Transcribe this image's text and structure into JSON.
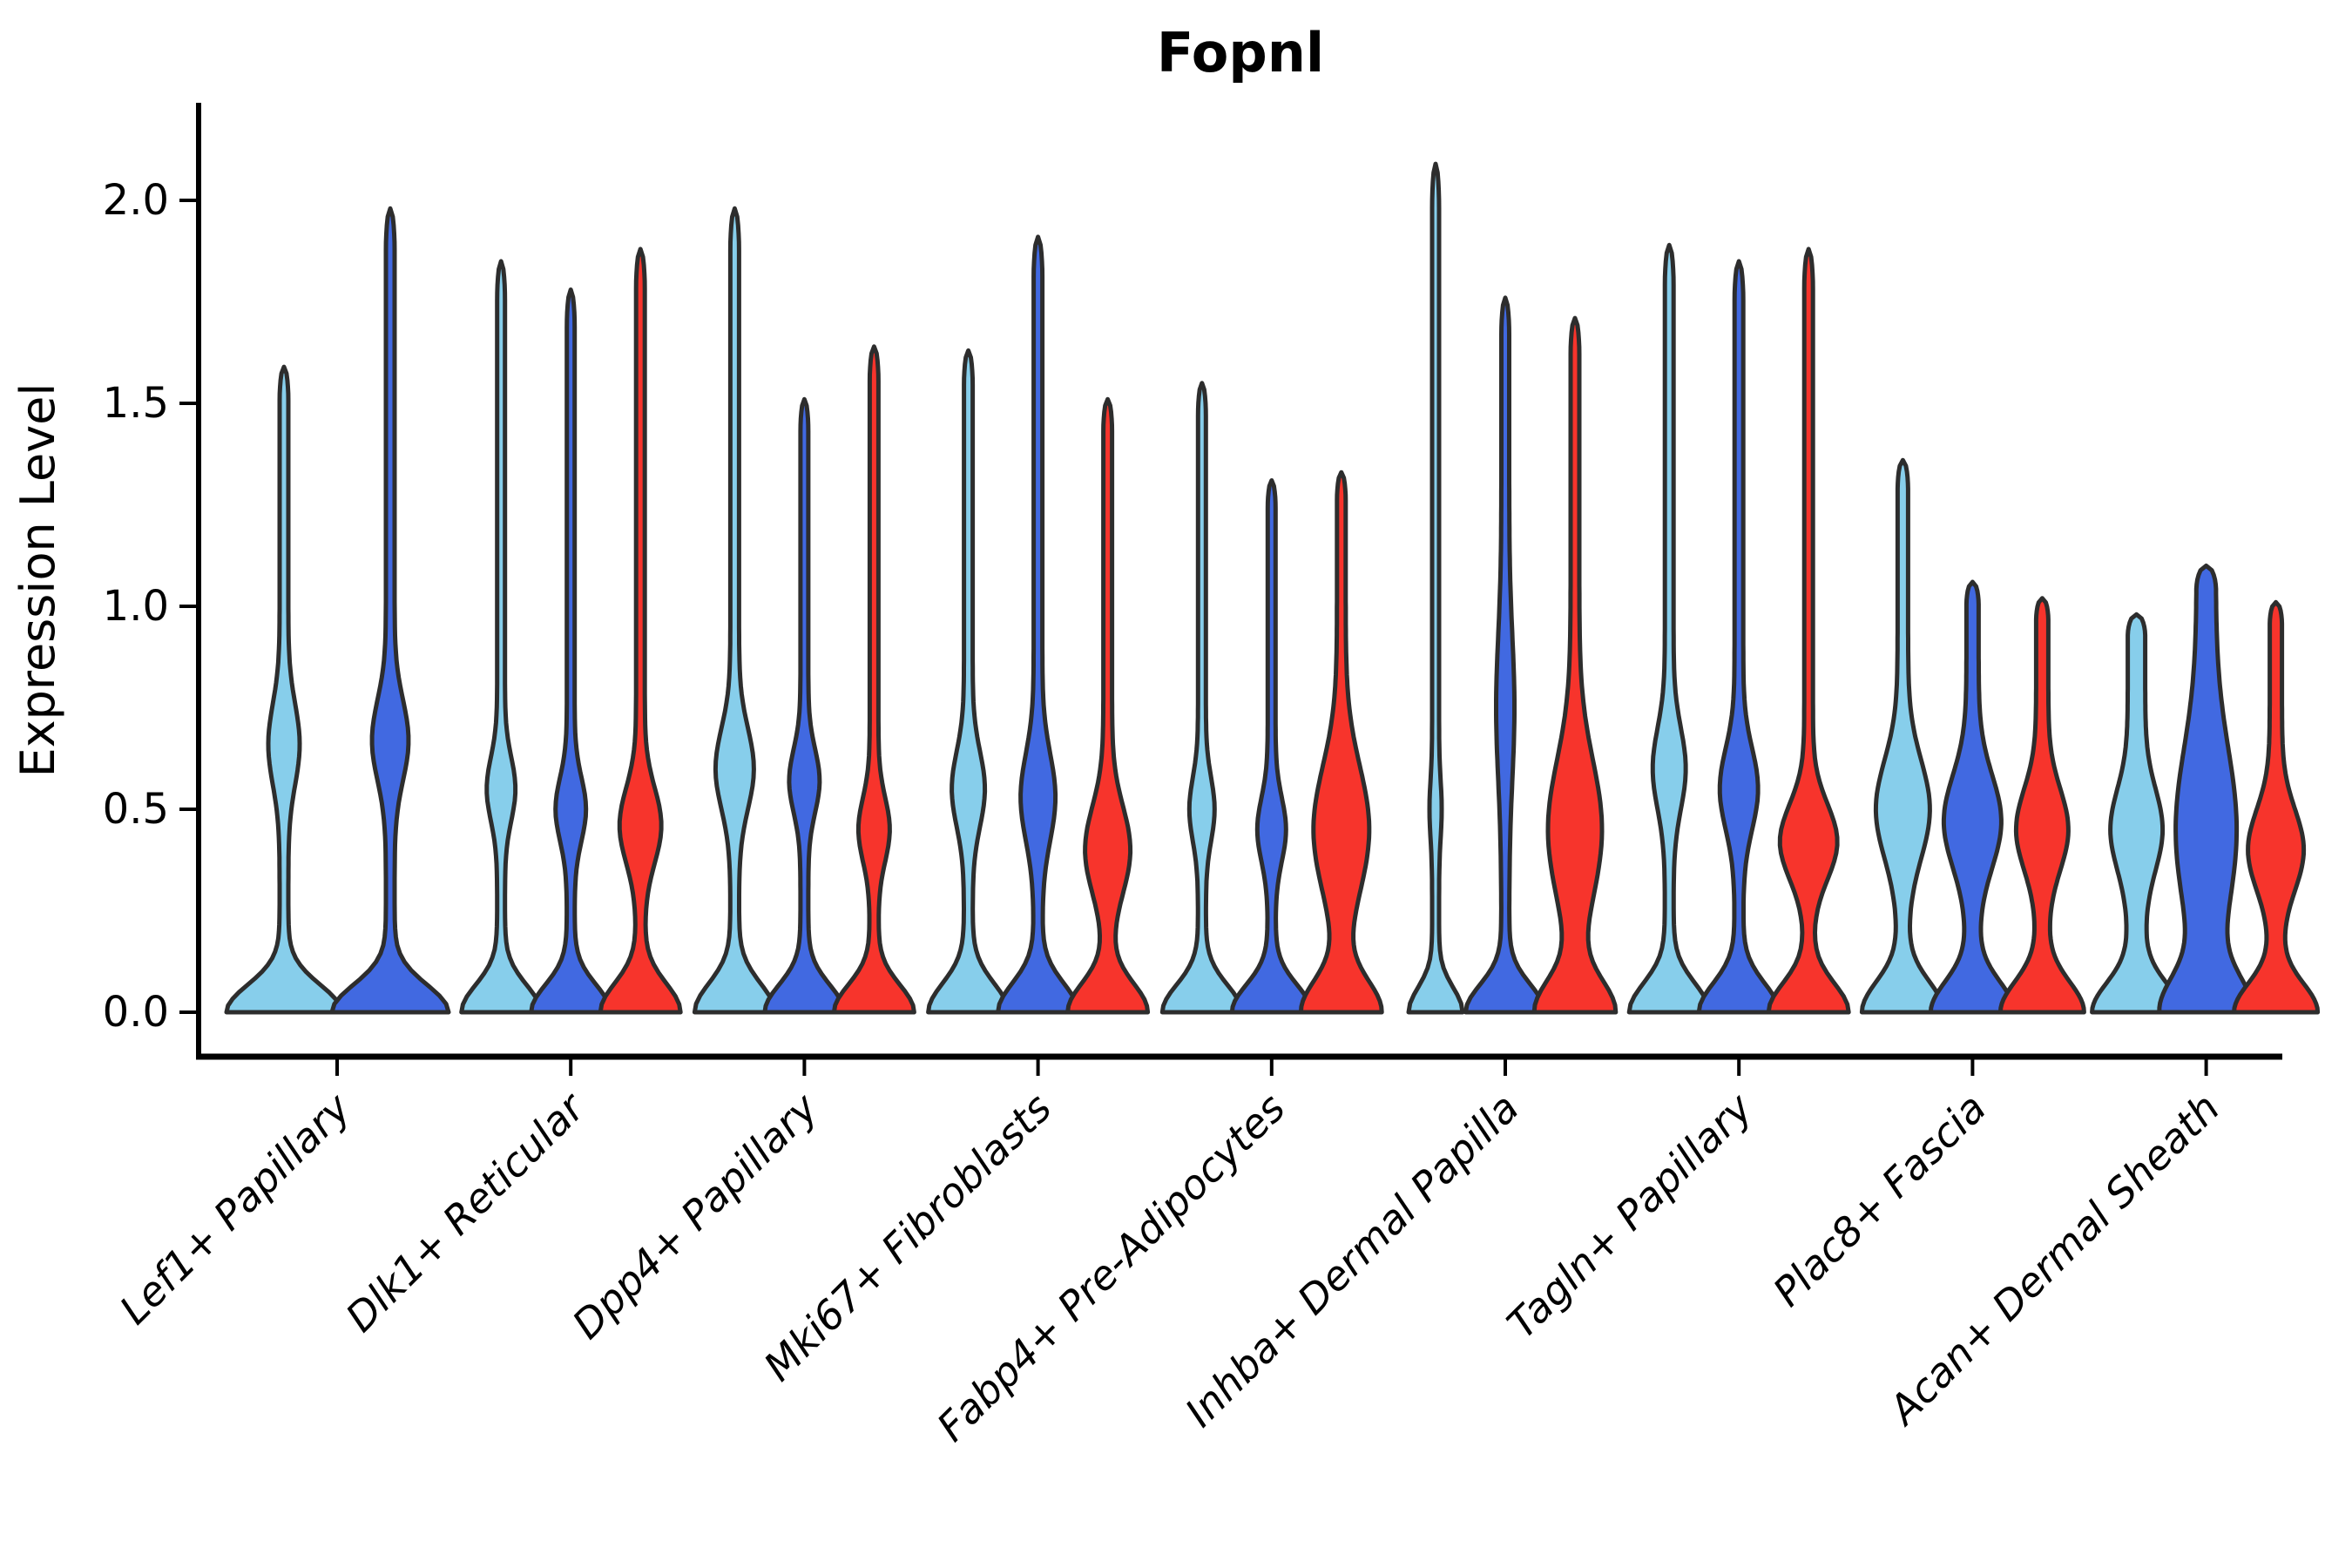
{
  "title": "Fopnl",
  "axes": {
    "y_label": "Expression Level",
    "y_tick_labels": [
      "0.0",
      "0.5",
      "1.0",
      "1.5",
      "2.0"
    ],
    "x_tick_labels": [
      "Lef1+ Papillary",
      "Dlk1+ Reticular",
      "Dpp4+ Papillary",
      "Mki67+ Fibroblasts",
      "Fabp4+ Pre-Adipocytes",
      "Inhba+ Dermal Papilla",
      "Tagln+ Papillary",
      "Plac8+ Fascia",
      "Acan+ Dermal Sheath"
    ]
  },
  "colors": {
    "series_light_blue": "#87CEEB",
    "series_royal_blue": "#4169E1",
    "series_red": "#F7342C",
    "violin_outline": "#2d2d2d",
    "axis": "#000000",
    "background": "#ffffff"
  },
  "chart_data": {
    "type": "violin",
    "title": "Fopnl",
    "xlabel": "",
    "ylabel": "Expression Level",
    "ylim": [
      0,
      2.25
    ],
    "y_ticks": [
      0.0,
      0.5,
      1.0,
      1.5,
      2.0
    ],
    "grid": false,
    "legend": "none",
    "categories": [
      "Lef1+ Papillary",
      "Dlk1+ Reticular",
      "Dpp4+ Papillary",
      "Mki67+ Fibroblasts",
      "Fabp4+ Pre-Adipocytes",
      "Inhba+ Dermal Papilla",
      "Tagln+ Papillary",
      "Plac8+ Fascia",
      "Acan+ Dermal Sheath"
    ],
    "series": [
      {
        "name": "light-blue",
        "color": "#87CEEB"
      },
      {
        "name": "royal-blue",
        "color": "#4169E1"
      },
      {
        "name": "red",
        "color": "#F7342C"
      }
    ],
    "violins": [
      {
        "category": 0,
        "series": 0,
        "max_expression": 1.59,
        "shape": {
          "base_half": 61,
          "base_sigma": 0.095,
          "stem_half": 5,
          "bulge_center": 0.66,
          "bulge_sigma": 0.14,
          "bulge_half": 13
        }
      },
      {
        "category": 0,
        "series": 1,
        "max_expression": 1.98,
        "shape": {
          "base_half": 62,
          "base_sigma": 0.095,
          "stem_half": 5,
          "bulge_center": 0.67,
          "bulge_sigma": 0.14,
          "bulge_half": 16
        }
      },
      {
        "category": 1,
        "series": 0,
        "max_expression": 1.85,
        "shape": {
          "base_half": 41,
          "base_sigma": 0.095,
          "stem_half": 4.5,
          "bulge_center": 0.55,
          "bulge_sigma": 0.11,
          "bulge_half": 12
        }
      },
      {
        "category": 1,
        "series": 1,
        "max_expression": 1.78,
        "shape": {
          "base_half": 41,
          "base_sigma": 0.095,
          "stem_half": 4.5,
          "bulge_center": 0.5,
          "bulge_sigma": 0.11,
          "bulge_half": 13
        }
      },
      {
        "category": 1,
        "series": 2,
        "max_expression": 1.88,
        "shape": {
          "base_half": 41,
          "base_sigma": 0.1,
          "stem_half": 5,
          "bulge_center": 0.46,
          "bulge_sigma": 0.13,
          "bulge_half": 19
        }
      },
      {
        "category": 2,
        "series": 0,
        "max_expression": 1.98,
        "shape": {
          "base_half": 41,
          "base_sigma": 0.1,
          "stem_half": 5,
          "bulge_center": 0.6,
          "bulge_sigma": 0.14,
          "bulge_half": 17
        }
      },
      {
        "category": 2,
        "series": 1,
        "max_expression": 1.51,
        "shape": {
          "base_half": 41,
          "base_sigma": 0.095,
          "stem_half": 4.5,
          "bulge_center": 0.57,
          "bulge_sigma": 0.11,
          "bulge_half": 13
        }
      },
      {
        "category": 2,
        "series": 2,
        "max_expression": 1.64,
        "shape": {
          "base_half": 41,
          "base_sigma": 0.095,
          "stem_half": 5,
          "bulge_center": 0.45,
          "bulge_sigma": 0.11,
          "bulge_half": 13
        }
      },
      {
        "category": 3,
        "series": 0,
        "max_expression": 1.63,
        "shape": {
          "base_half": 41,
          "base_sigma": 0.1,
          "stem_half": 5,
          "bulge_center": 0.55,
          "bulge_sigma": 0.13,
          "bulge_half": 14
        }
      },
      {
        "category": 3,
        "series": 1,
        "max_expression": 1.91,
        "shape": {
          "base_half": 41,
          "base_sigma": 0.1,
          "stem_half": 5,
          "bulge_center": 0.53,
          "bulge_sigma": 0.15,
          "bulge_half": 15
        }
      },
      {
        "category": 3,
        "series": 2,
        "max_expression": 1.51,
        "shape": {
          "base_half": 41,
          "base_sigma": 0.1,
          "stem_half": 5,
          "bulge_center": 0.4,
          "bulge_sigma": 0.15,
          "bulge_half": 21
        }
      },
      {
        "category": 4,
        "series": 0,
        "max_expression": 1.55,
        "shape": {
          "base_half": 41,
          "base_sigma": 0.095,
          "stem_half": 4.5,
          "bulge_center": 0.5,
          "bulge_sigma": 0.11,
          "bulge_half": 10
        }
      },
      {
        "category": 4,
        "series": 1,
        "max_expression": 1.31,
        "shape": {
          "base_half": 41,
          "base_sigma": 0.095,
          "stem_half": 4.5,
          "bulge_center": 0.45,
          "bulge_sigma": 0.11,
          "bulge_half": 12
        }
      },
      {
        "category": 4,
        "series": 2,
        "max_expression": 1.33,
        "shape": {
          "base_half": 41,
          "base_sigma": 0.11,
          "stem_half": 5,
          "bulge_center": 0.45,
          "bulge_sigma": 0.22,
          "bulge_half": 27
        }
      },
      {
        "category": 5,
        "series": 0,
        "max_expression": 2.09,
        "shape": {
          "base_half": 27,
          "base_sigma": 0.085,
          "stem_half": 4,
          "bulge_center": 0.5,
          "bulge_sigma": 0.1,
          "bulge_half": 3
        }
      },
      {
        "category": 5,
        "series": 1,
        "max_expression": 1.76,
        "shape": {
          "base_half": 41,
          "base_sigma": 0.095,
          "stem_half": 4.5,
          "bulge_center": 0.75,
          "bulge_sigma": 0.25,
          "bulge_half": 6
        }
      },
      {
        "category": 5,
        "series": 2,
        "max_expression": 1.71,
        "shape": {
          "base_half": 41,
          "base_sigma": 0.11,
          "stem_half": 5,
          "bulge_center": 0.45,
          "bulge_sigma": 0.24,
          "bulge_half": 26
        }
      },
      {
        "category": 6,
        "series": 0,
        "max_expression": 1.89,
        "shape": {
          "base_half": 41,
          "base_sigma": 0.1,
          "stem_half": 5,
          "bulge_center": 0.6,
          "bulge_sigma": 0.14,
          "bulge_half": 14
        }
      },
      {
        "category": 6,
        "series": 1,
        "max_expression": 1.85,
        "shape": {
          "base_half": 41,
          "base_sigma": 0.1,
          "stem_half": 5,
          "bulge_center": 0.55,
          "bulge_sigma": 0.14,
          "bulge_half": 17
        }
      },
      {
        "category": 6,
        "series": 2,
        "max_expression": 1.88,
        "shape": {
          "base_half": 41,
          "base_sigma": 0.1,
          "stem_half": 5,
          "bulge_center": 0.42,
          "bulge_sigma": 0.13,
          "bulge_half": 28
        }
      },
      {
        "category": 7,
        "series": 0,
        "max_expression": 1.36,
        "shape": {
          "base_half": 41,
          "base_sigma": 0.105,
          "stem_half": 6,
          "bulge_center": 0.5,
          "bulge_sigma": 0.17,
          "bulge_half": 25
        }
      },
      {
        "category": 7,
        "series": 1,
        "max_expression": 1.06,
        "shape": {
          "base_half": 41,
          "base_sigma": 0.105,
          "stem_half": 7,
          "bulge_center": 0.47,
          "bulge_sigma": 0.16,
          "bulge_half": 26
        }
      },
      {
        "category": 7,
        "series": 2,
        "max_expression": 1.02,
        "shape": {
          "base_half": 41,
          "base_sigma": 0.105,
          "stem_half": 7,
          "bulge_center": 0.45,
          "bulge_sigma": 0.14,
          "bulge_half": 23
        }
      },
      {
        "category": 8,
        "series": 0,
        "max_expression": 0.98,
        "shape": {
          "base_half": 41,
          "base_sigma": 0.1,
          "stem_half": 10,
          "bulge_center": 0.45,
          "bulge_sigma": 0.14,
          "bulge_half": 20
        }
      },
      {
        "category": 8,
        "series": 1,
        "max_expression": 1.1,
        "shape": {
          "base_half": 41,
          "base_sigma": 0.12,
          "stem_half": 11,
          "bulge_center": 0.45,
          "bulge_sigma": 0.28,
          "bulge_half": 24
        }
      },
      {
        "category": 8,
        "series": 2,
        "max_expression": 1.01,
        "shape": {
          "base_half": 41,
          "base_sigma": 0.1,
          "stem_half": 7,
          "bulge_center": 0.4,
          "bulge_sigma": 0.14,
          "bulge_half": 25
        }
      }
    ]
  }
}
